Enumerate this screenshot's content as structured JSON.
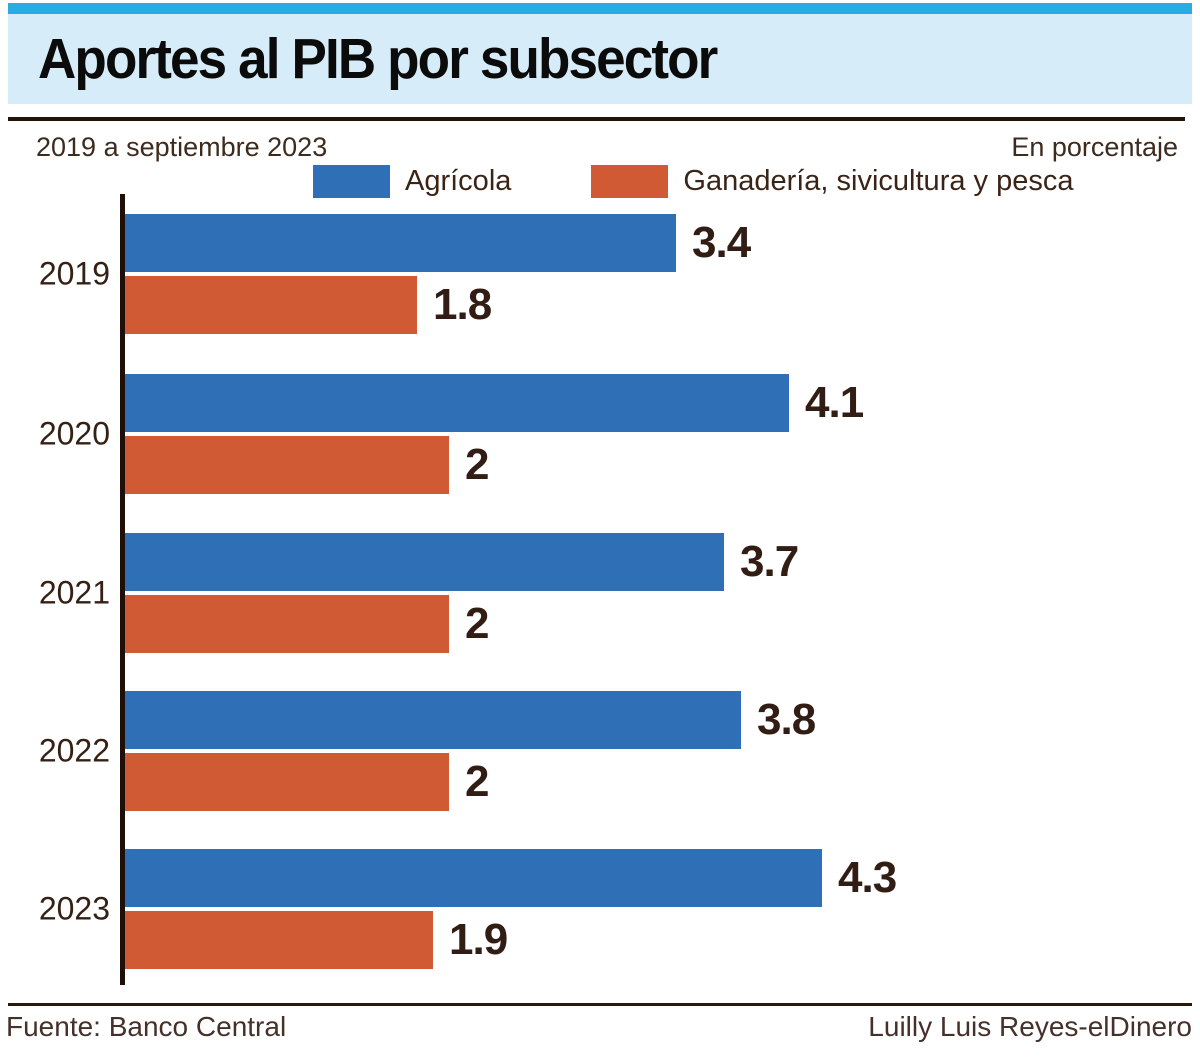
{
  "header": {
    "title": "Aportes al PIB por subsector"
  },
  "subtitle": {
    "left": "2019 a septiembre 2023",
    "right": "En porcentaje"
  },
  "legend": [
    {
      "label": "Agrícola",
      "color": "#2f6fb5"
    },
    {
      "label": "Ganadería, sivicultura y pesca",
      "color": "#d05a33"
    }
  ],
  "chart_data": {
    "type": "bar",
    "orientation": "horizontal",
    "title": "Aportes al PIB por subsector",
    "subtitle": "2019 a septiembre 2023",
    "unit": "En porcentaje",
    "xlabel": "",
    "ylabel": "",
    "xlim": [
      0,
      4.8
    ],
    "grid": false,
    "legend_position": "top",
    "categories": [
      "2019",
      "2020",
      "2021",
      "2022",
      "2023"
    ],
    "series": [
      {
        "name": "Agrícola",
        "color": "#2f6fb5",
        "values": [
          3.4,
          4.1,
          3.7,
          3.8,
          4.3
        ]
      },
      {
        "name": "Ganadería, sivicultura y pesca",
        "color": "#d05a33",
        "values": [
          1.8,
          2,
          2,
          2,
          1.9
        ]
      }
    ],
    "value_labels": [
      [
        "3.4",
        "1.8"
      ],
      [
        "4.1",
        "2"
      ],
      [
        "3.7",
        "2"
      ],
      [
        "3.8",
        "2"
      ],
      [
        "4.3",
        "1.9"
      ]
    ]
  },
  "footer": {
    "source": "Fuente: Banco Central",
    "credit": "Luilly Luis Reyes-elDinero"
  },
  "colors": {
    "header_strip": "#29ace4",
    "header_band": "#d6ecf8",
    "bar_blue": "#2f6fb5",
    "bar_orange": "#d05a33",
    "axis": "#1e1008",
    "text_brown": "#3a2418",
    "value_text": "#311d13"
  }
}
